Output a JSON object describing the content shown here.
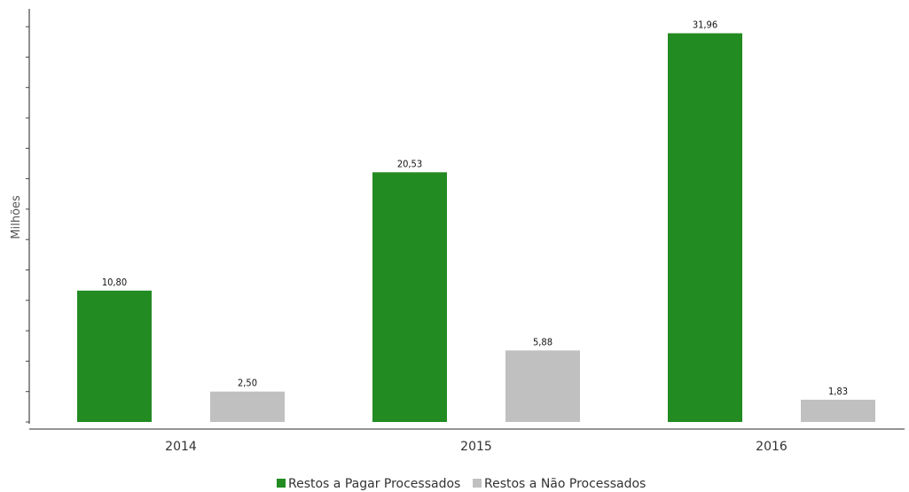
{
  "chart_data": {
    "type": "bar",
    "categories": [
      "2014",
      "2015",
      "2016"
    ],
    "series": [
      {
        "name": "Restos a Pagar Processados",
        "color": "#228b22",
        "values": [
          10.8,
          20.53,
          31.96
        ],
        "labels": [
          "10,80",
          "20,53",
          "31,96"
        ]
      },
      {
        "name": "Restos a Não Processados",
        "color": "#c0c0c0",
        "values": [
          2.5,
          5.88,
          1.83
        ],
        "labels": [
          "2,50",
          "5,88",
          "1,83"
        ]
      }
    ],
    "title": "",
    "xlabel": "",
    "ylabel": "Milhões",
    "ylim": [
      0,
      34
    ],
    "grid": false,
    "legend": "bottom-center"
  }
}
